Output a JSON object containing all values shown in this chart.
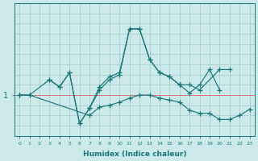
{
  "xlabel": "Humidex (Indice chaleur)",
  "xlim": [
    -0.5,
    23.5
  ],
  "ylim": [
    0.6,
    1.9
  ],
  "yticks": [
    1.0
  ],
  "ytick_labels": [
    "1"
  ],
  "bg_color": "#cceaea",
  "grid_color": "#aacece",
  "line_color": "#1a7878",
  "hline_color": "#dd6666",
  "series": [
    {
      "x": [
        0,
        1,
        3,
        4,
        5,
        6,
        7
      ],
      "y": [
        1.0,
        1.0,
        1.15,
        1.08,
        1.22,
        0.72,
        0.87
      ]
    },
    {
      "x": [
        3,
        4,
        5,
        6,
        7,
        8,
        9,
        10,
        11,
        12,
        13,
        14,
        15,
        16,
        17,
        18,
        19,
        20
      ],
      "y": [
        1.15,
        1.08,
        1.22,
        0.72,
        0.87,
        1.08,
        1.18,
        1.22,
        1.65,
        1.65,
        1.35,
        1.22,
        1.18,
        1.1,
        1.02,
        1.1,
        1.25,
        1.05
      ]
    },
    {
      "x": [
        7,
        8,
        9,
        10,
        11,
        12,
        13,
        14,
        15,
        16
      ],
      "y": [
        0.87,
        1.05,
        1.15,
        1.2,
        1.65,
        1.65,
        1.35,
        1.22,
        1.18,
        1.1
      ]
    },
    {
      "x": [
        0,
        1,
        7,
        8,
        9,
        10,
        11,
        12,
        13,
        14,
        15,
        16,
        17,
        18,
        19,
        20,
        21,
        22,
        23
      ],
      "y": [
        1.0,
        1.0,
        0.8,
        0.88,
        0.9,
        0.93,
        0.97,
        1.0,
        1.0,
        0.97,
        0.95,
        0.93,
        0.85,
        0.82,
        0.82,
        0.76,
        0.76,
        0.8,
        0.86
      ]
    },
    {
      "x": [
        16,
        17,
        18,
        20,
        21
      ],
      "y": [
        1.1,
        1.1,
        1.05,
        1.25,
        1.25
      ]
    }
  ],
  "hline_y": 1.0
}
